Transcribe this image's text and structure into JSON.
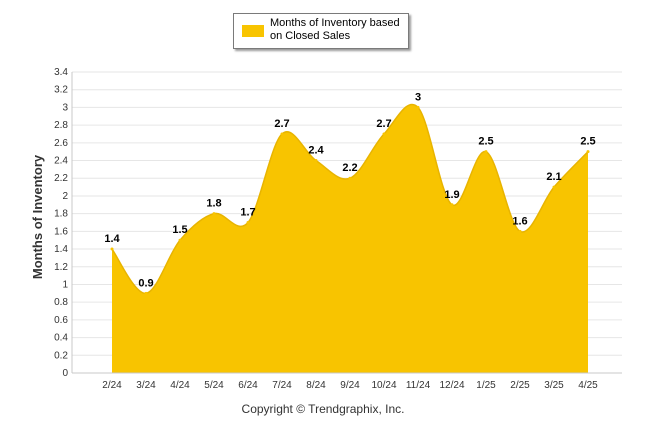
{
  "chart_data": {
    "type": "area",
    "ylabel": "Months of Inventory",
    "xlabel": "",
    "categories": [
      "2/24",
      "3/24",
      "4/24",
      "5/24",
      "6/24",
      "7/24",
      "8/24",
      "9/24",
      "10/24",
      "11/24",
      "12/24",
      "1/25",
      "2/25",
      "3/25",
      "4/25"
    ],
    "series": [
      {
        "name": "Months of Inventory based on Closed Sales",
        "values": [
          1.4,
          0.9,
          1.5,
          1.8,
          1.7,
          2.7,
          2.4,
          2.2,
          2.7,
          3,
          1.9,
          2.5,
          1.6,
          2.1,
          2.5
        ],
        "labels": [
          "1.4",
          "0.9",
          "1.5",
          "1.8",
          "1.7",
          "2.7",
          "2.4",
          "2.2",
          "2.7",
          "3",
          "1.9",
          "2.5",
          "1.6",
          "2.1",
          "2.5"
        ],
        "color": "#f8c400"
      }
    ],
    "yticks": [
      "0",
      "0.2",
      "0.4",
      "0.6",
      "0.8",
      "1",
      "1.2",
      "1.4",
      "1.6",
      "1.8",
      "2",
      "2.2",
      "2.4",
      "2.6",
      "2.8",
      "3",
      "3.2",
      "3.4"
    ],
    "ylim": [
      0,
      3.4
    ],
    "grid": true,
    "legend": "top-center"
  },
  "legend": {
    "line1": "Months of Inventory based",
    "line2": "on Closed Sales"
  },
  "footer": {
    "copyright": "Copyright © Trendgraphix, Inc."
  }
}
